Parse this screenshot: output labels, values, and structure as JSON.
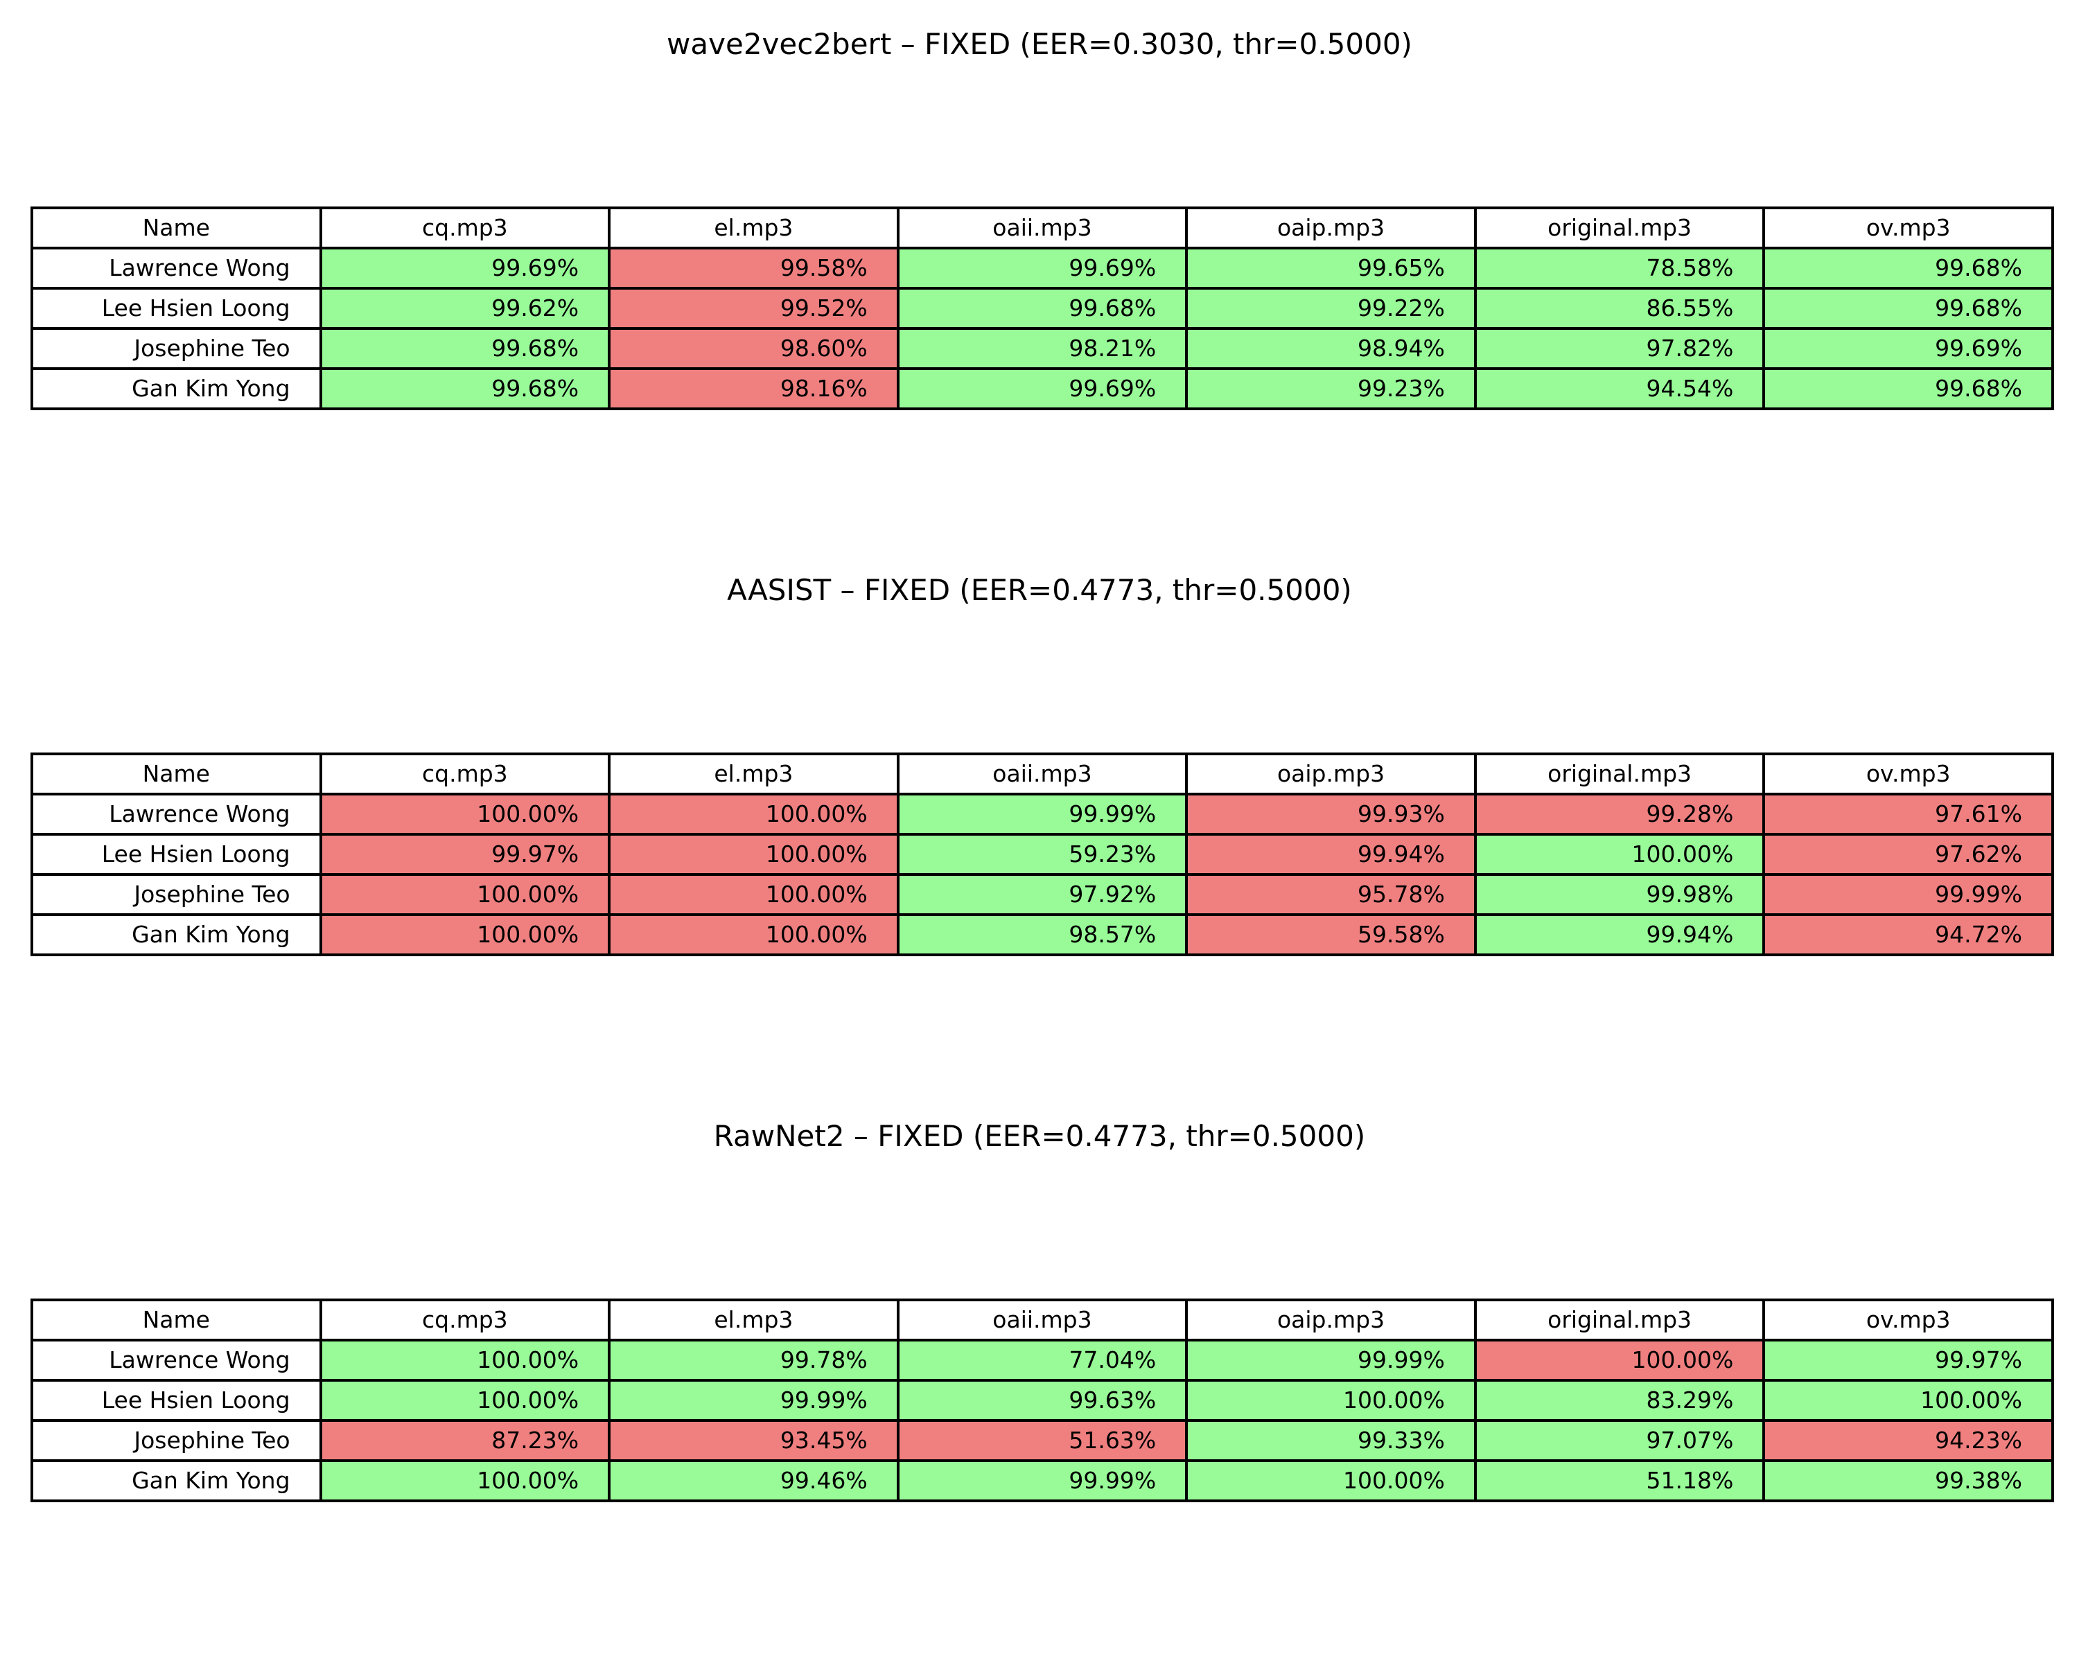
{
  "colors": {
    "green": "#98fb98",
    "red": "#f08080",
    "border": "#000000"
  },
  "chart_data": [
    {
      "type": "table",
      "title": "wave2vec2bert – FIXED (EER=0.3030, thr=0.5000)",
      "columns": [
        "Name",
        "cq.mp3",
        "el.mp3",
        "oaii.mp3",
        "oaip.mp3",
        "original.mp3",
        "ov.mp3"
      ],
      "rows": [
        {
          "name": "Lawrence Wong",
          "cells": [
            {
              "value": "99.69%",
              "color": "green"
            },
            {
              "value": "99.58%",
              "color": "red"
            },
            {
              "value": "99.69%",
              "color": "green"
            },
            {
              "value": "99.65%",
              "color": "green"
            },
            {
              "value": "78.58%",
              "color": "green"
            },
            {
              "value": "99.68%",
              "color": "green"
            }
          ]
        },
        {
          "name": "Lee Hsien Loong",
          "cells": [
            {
              "value": "99.62%",
              "color": "green"
            },
            {
              "value": "99.52%",
              "color": "red"
            },
            {
              "value": "99.68%",
              "color": "green"
            },
            {
              "value": "99.22%",
              "color": "green"
            },
            {
              "value": "86.55%",
              "color": "green"
            },
            {
              "value": "99.68%",
              "color": "green"
            }
          ]
        },
        {
          "name": "Josephine Teo",
          "cells": [
            {
              "value": "99.68%",
              "color": "green"
            },
            {
              "value": "98.60%",
              "color": "red"
            },
            {
              "value": "98.21%",
              "color": "green"
            },
            {
              "value": "98.94%",
              "color": "green"
            },
            {
              "value": "97.82%",
              "color": "green"
            },
            {
              "value": "99.69%",
              "color": "green"
            }
          ]
        },
        {
          "name": "Gan Kim Yong",
          "cells": [
            {
              "value": "99.68%",
              "color": "green"
            },
            {
              "value": "98.16%",
              "color": "red"
            },
            {
              "value": "99.69%",
              "color": "green"
            },
            {
              "value": "99.23%",
              "color": "green"
            },
            {
              "value": "94.54%",
              "color": "green"
            },
            {
              "value": "99.68%",
              "color": "green"
            }
          ]
        }
      ]
    },
    {
      "type": "table",
      "title": "AASIST – FIXED (EER=0.4773, thr=0.5000)",
      "columns": [
        "Name",
        "cq.mp3",
        "el.mp3",
        "oaii.mp3",
        "oaip.mp3",
        "original.mp3",
        "ov.mp3"
      ],
      "rows": [
        {
          "name": "Lawrence Wong",
          "cells": [
            {
              "value": "100.00%",
              "color": "red"
            },
            {
              "value": "100.00%",
              "color": "red"
            },
            {
              "value": "99.99%",
              "color": "green"
            },
            {
              "value": "99.93%",
              "color": "red"
            },
            {
              "value": "99.28%",
              "color": "red"
            },
            {
              "value": "97.61%",
              "color": "red"
            }
          ]
        },
        {
          "name": "Lee Hsien Loong",
          "cells": [
            {
              "value": "99.97%",
              "color": "red"
            },
            {
              "value": "100.00%",
              "color": "red"
            },
            {
              "value": "59.23%",
              "color": "green"
            },
            {
              "value": "99.94%",
              "color": "red"
            },
            {
              "value": "100.00%",
              "color": "green"
            },
            {
              "value": "97.62%",
              "color": "red"
            }
          ]
        },
        {
          "name": "Josephine Teo",
          "cells": [
            {
              "value": "100.00%",
              "color": "red"
            },
            {
              "value": "100.00%",
              "color": "red"
            },
            {
              "value": "97.92%",
              "color": "green"
            },
            {
              "value": "95.78%",
              "color": "red"
            },
            {
              "value": "99.98%",
              "color": "green"
            },
            {
              "value": "99.99%",
              "color": "red"
            }
          ]
        },
        {
          "name": "Gan Kim Yong",
          "cells": [
            {
              "value": "100.00%",
              "color": "red"
            },
            {
              "value": "100.00%",
              "color": "red"
            },
            {
              "value": "98.57%",
              "color": "green"
            },
            {
              "value": "59.58%",
              "color": "red"
            },
            {
              "value": "99.94%",
              "color": "green"
            },
            {
              "value": "94.72%",
              "color": "red"
            }
          ]
        }
      ]
    },
    {
      "type": "table",
      "title": "RawNet2 – FIXED (EER=0.4773, thr=0.5000)",
      "columns": [
        "Name",
        "cq.mp3",
        "el.mp3",
        "oaii.mp3",
        "oaip.mp3",
        "original.mp3",
        "ov.mp3"
      ],
      "rows": [
        {
          "name": "Lawrence Wong",
          "cells": [
            {
              "value": "100.00%",
              "color": "green"
            },
            {
              "value": "99.78%",
              "color": "green"
            },
            {
              "value": "77.04%",
              "color": "green"
            },
            {
              "value": "99.99%",
              "color": "green"
            },
            {
              "value": "100.00%",
              "color": "red"
            },
            {
              "value": "99.97%",
              "color": "green"
            }
          ]
        },
        {
          "name": "Lee Hsien Loong",
          "cells": [
            {
              "value": "100.00%",
              "color": "green"
            },
            {
              "value": "99.99%",
              "color": "green"
            },
            {
              "value": "99.63%",
              "color": "green"
            },
            {
              "value": "100.00%",
              "color": "green"
            },
            {
              "value": "83.29%",
              "color": "green"
            },
            {
              "value": "100.00%",
              "color": "green"
            }
          ]
        },
        {
          "name": "Josephine Teo",
          "cells": [
            {
              "value": "87.23%",
              "color": "red"
            },
            {
              "value": "93.45%",
              "color": "red"
            },
            {
              "value": "51.63%",
              "color": "red"
            },
            {
              "value": "99.33%",
              "color": "green"
            },
            {
              "value": "97.07%",
              "color": "green"
            },
            {
              "value": "94.23%",
              "color": "red"
            }
          ]
        },
        {
          "name": "Gan Kim Yong",
          "cells": [
            {
              "value": "100.00%",
              "color": "green"
            },
            {
              "value": "99.46%",
              "color": "green"
            },
            {
              "value": "99.99%",
              "color": "green"
            },
            {
              "value": "100.00%",
              "color": "green"
            },
            {
              "value": "51.18%",
              "color": "green"
            },
            {
              "value": "99.38%",
              "color": "green"
            }
          ]
        }
      ]
    }
  ]
}
